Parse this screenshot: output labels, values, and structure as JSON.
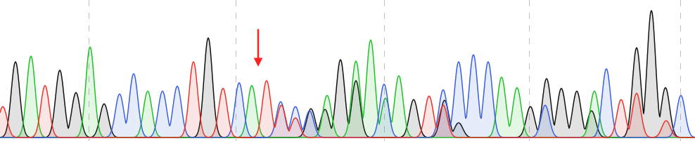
{
  "chart_data": {
    "type": "chromatogram",
    "xlim": [
      0,
      988
    ],
    "ylim": [
      -5,
      196
    ],
    "xticks": [
      126,
      335,
      546,
      752,
      967
    ],
    "grid": true,
    "tick_labels": false,
    "arrow": {
      "x": 367,
      "y": 101,
      "color": "#ff2020"
    },
    "series": [
      {
        "color": "#111111",
        "x": [
          22,
          85,
          108,
          148,
          296,
          442,
          462,
          484,
          506,
          588,
          632,
          652,
          754,
          777,
          798,
          820,
          841,
          905,
          926,
          946
        ],
        "values": [
          108,
          96,
          64,
          48,
          142,
          41,
          40,
          111,
          81,
          54,
          53,
          21,
          44,
          84,
          70,
          66,
          38,
          128,
          181,
          71
        ]
      },
      {
        "color": "#22c02a",
        "x": [
          44,
          128,
          210,
          358,
          465,
          506,
          527,
          548,
          567,
          713,
          735,
          845
        ],
        "values": [
          116,
          129,
          66,
          74,
          60,
          109,
          139,
          56,
          88,
          86,
          71,
          66
        ]
      },
      {
        "color": "#3a5fe0",
        "x": [
          170,
          190,
          231,
          252,
          340,
          399,
          420,
          440,
          546,
          630,
          652,
          673,
          694,
          775,
          862,
          968
        ],
        "values": [
          62,
          91,
          66,
          73,
          78,
          51,
          44,
          38,
          76,
          68,
          108,
          118,
          108,
          46,
          98,
          60
        ]
      },
      {
        "color": "#e8352a",
        "x": [
          4,
          64,
          275,
          317,
          379,
          400,
          420,
          610,
          630,
          883,
          905,
          947
        ],
        "values": [
          44,
          74,
          108,
          70,
          81,
          46,
          28,
          59,
          46,
          54,
          63,
          24
        ]
      }
    ]
  }
}
